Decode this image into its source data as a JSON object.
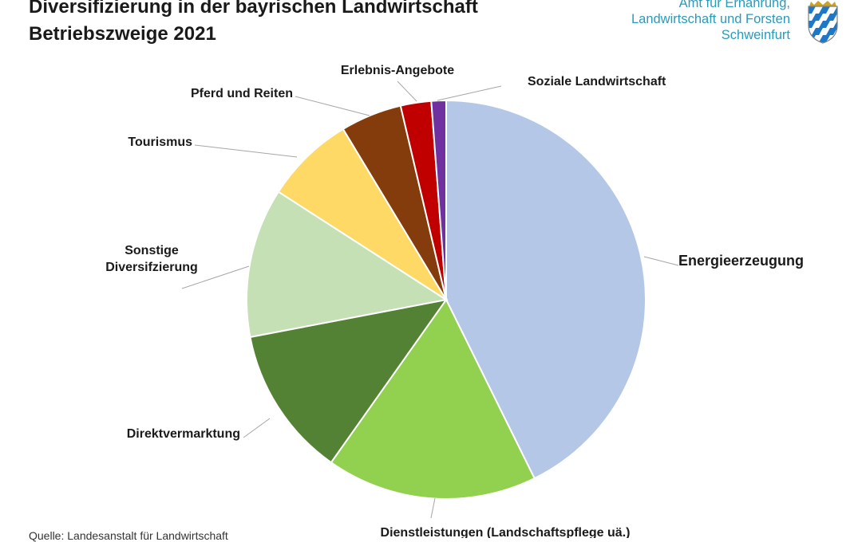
{
  "header": {
    "title_line1": "Diversifizierung in der bayrischen Landwirtschaft",
    "title_line2": "Betriebszweige 2021",
    "agency_line1": "Amt für Ernährung,",
    "agency_line2": "Landwirtschaft und Forsten",
    "agency_line3": "Schweinfurt"
  },
  "footer": {
    "source": "Quelle: Landesanstalt für Landwirtschaft"
  },
  "chart_data": {
    "type": "pie",
    "title": "Diversifizierung in der bayrischen Landwirtschaft Betriebszweige 2021",
    "legend": "none",
    "slices": [
      {
        "label": "Energieerzeugung",
        "value": 43.0,
        "color": "#b4c7e7"
      },
      {
        "label": "Dienstleistungen (Landschaftspflege uä.)",
        "value": 17.2,
        "color": "#92d050"
      },
      {
        "label": "Direktvermarktung",
        "value": 12.3,
        "color": "#548235"
      },
      {
        "label": "Sonstige Diversifzierung",
        "value": 12.2,
        "color": "#c5e0b4"
      },
      {
        "label": "Tourismus",
        "value": 7.3,
        "color": "#ffd966"
      },
      {
        "label": "Pferd und Reiten",
        "value": 5.0,
        "color": "#843c0c"
      },
      {
        "label": "Erlebnis-Angebote",
        "value": 2.5,
        "color": "#c00000"
      },
      {
        "label": "Soziale Landwirtschaft",
        "value": 1.2,
        "color": "#7030a0"
      }
    ]
  }
}
